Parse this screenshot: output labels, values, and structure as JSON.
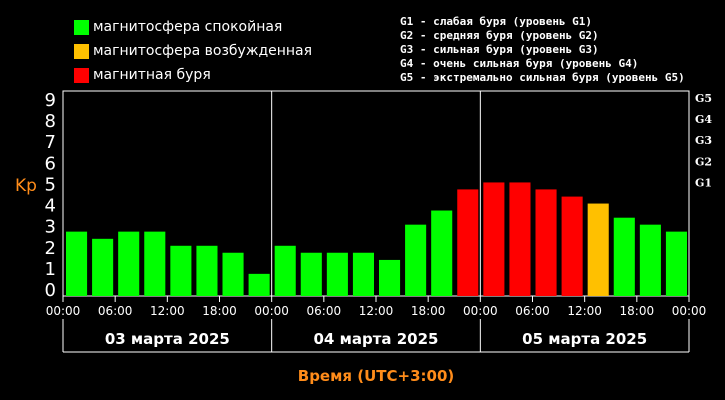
{
  "legend": [
    {
      "label": "магнитосфера спокойная",
      "color": "#00ff00"
    },
    {
      "label": "магнитосфера возбужденная",
      "color": "#ffc000"
    },
    {
      "label": "магнитная буря",
      "color": "#ff0000"
    }
  ],
  "storm_legend": [
    "G1 - слабая буря (уровень G1)",
    "G2 - средняя буря (уровень G2)",
    "G3 - сильная буря (уровень G3)",
    "G4 - очень сильная буря (уровень G4)",
    "G5 - экстремально сильная буря (уровень G5)"
  ],
  "chart_data": {
    "type": "bar",
    "ylabel": "Kp",
    "xlabel": "Время (UTC+3:00)",
    "ylim": [
      0,
      9
    ],
    "yticks": [
      0,
      1,
      2,
      3,
      4,
      5,
      6,
      7,
      8,
      9
    ],
    "right_axis_labels": [
      {
        "y": 5,
        "label": "G1"
      },
      {
        "y": 6,
        "label": "G2"
      },
      {
        "y": 7,
        "label": "G3"
      },
      {
        "y": 8,
        "label": "G4"
      },
      {
        "y": 9,
        "label": "G5"
      }
    ],
    "x_tick_labels": [
      "00:00",
      "06:00",
      "12:00",
      "18:00",
      "00:00",
      "06:00",
      "12:00",
      "18:00",
      "00:00",
      "06:00",
      "12:00",
      "18:00",
      "00:00"
    ],
    "days": [
      "03 марта 2025",
      "04 марта 2025",
      "05 марта 2025"
    ],
    "values": [
      2.67,
      2.33,
      2.67,
      2.67,
      2.0,
      2.0,
      1.67,
      0.67,
      2.0,
      1.67,
      1.67,
      1.67,
      1.33,
      3.0,
      3.67,
      4.67,
      5.0,
      5.0,
      4.67,
      4.33,
      4.0,
      3.33,
      3.0,
      2.67
    ],
    "levels": [
      "quiet",
      "quiet",
      "quiet",
      "quiet",
      "quiet",
      "quiet",
      "quiet",
      "quiet",
      "quiet",
      "quiet",
      "quiet",
      "quiet",
      "quiet",
      "quiet",
      "quiet",
      "storm",
      "storm",
      "storm",
      "storm",
      "storm",
      "active",
      "quiet",
      "quiet",
      "quiet"
    ],
    "colors": {
      "quiet": "#00ff00",
      "active": "#ffc000",
      "storm": "#ff0000"
    },
    "grid": false,
    "legend_position": "top-left"
  }
}
